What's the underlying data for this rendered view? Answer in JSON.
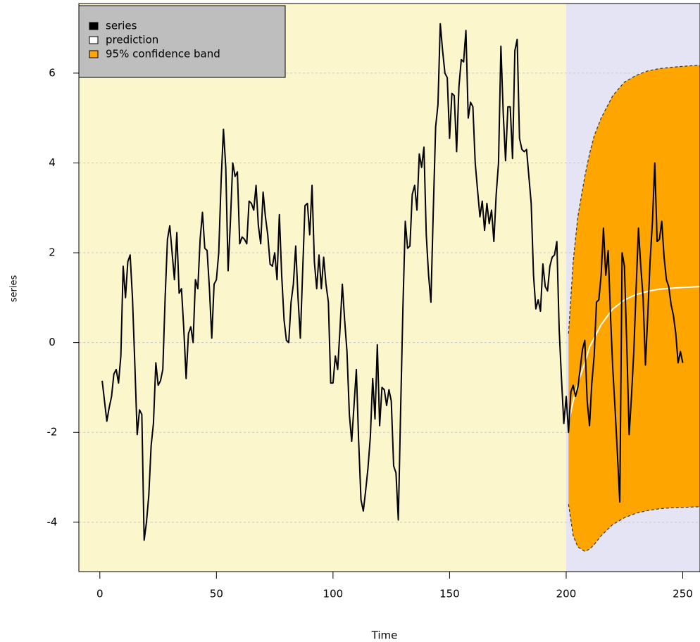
{
  "chart_data": {
    "type": "line",
    "x_label": "Time",
    "y_label": "series",
    "xlim": [
      -9,
      257.4
    ],
    "ylim": [
      -5.1,
      7.55
    ],
    "xticks": [
      0,
      50,
      100,
      150,
      200,
      250
    ],
    "yticks": [
      -4,
      -2,
      0,
      2,
      4,
      6
    ],
    "grid": true,
    "legend": "top-left",
    "forecast_start": 200,
    "background_colors": [
      "#fcf6cc",
      "#e4e4f5"
    ],
    "series": [
      {
        "name": "series",
        "color": "#000000",
        "x": [
          1,
          2,
          3,
          4,
          5,
          6,
          7,
          8,
          9,
          10,
          11,
          12,
          13,
          14,
          15,
          16,
          17,
          18,
          19,
          20,
          21,
          22,
          23,
          24,
          25,
          26,
          27,
          28,
          29,
          30,
          31,
          32,
          33,
          34,
          35,
          36,
          37,
          38,
          39,
          40,
          41,
          42,
          43,
          44,
          45,
          46,
          47,
          48,
          49,
          50,
          51,
          52,
          53,
          54,
          55,
          56,
          57,
          58,
          59,
          60,
          61,
          62,
          63,
          64,
          65,
          66,
          67,
          68,
          69,
          70,
          71,
          72,
          73,
          74,
          75,
          76,
          77,
          78,
          79,
          80,
          81,
          82,
          83,
          84,
          85,
          86,
          87,
          88,
          89,
          90,
          91,
          92,
          93,
          94,
          95,
          96,
          97,
          98,
          99,
          100,
          101,
          102,
          103,
          104,
          105,
          106,
          107,
          108,
          109,
          110,
          111,
          112,
          113,
          114,
          115,
          116,
          117,
          118,
          119,
          120,
          121,
          122,
          123,
          124,
          125,
          126,
          127,
          128,
          129,
          130,
          131,
          132,
          133,
          134,
          135,
          136,
          137,
          138,
          139,
          140,
          141,
          142,
          143,
          144,
          145,
          146,
          147,
          148,
          149,
          150,
          151,
          152,
          153,
          154,
          155,
          156,
          157,
          158,
          159,
          160,
          161,
          162,
          163,
          164,
          165,
          166,
          167,
          168,
          169,
          170,
          171,
          172,
          173,
          174,
          175,
          176,
          177,
          178,
          179,
          180,
          181,
          182,
          183,
          184,
          185,
          186,
          187,
          188,
          189,
          190,
          191,
          192,
          193,
          194,
          195,
          196,
          197,
          198,
          199,
          200,
          201,
          202,
          203,
          204,
          205,
          206,
          207,
          208,
          209,
          210,
          211,
          212,
          213,
          214,
          215,
          216,
          217,
          218,
          219,
          220,
          221,
          222,
          223,
          224,
          225,
          226,
          227,
          228,
          229,
          230,
          231,
          232,
          233,
          234,
          235,
          236,
          237,
          238,
          239,
          240,
          241,
          242,
          243,
          244,
          245,
          246,
          247,
          248,
          249,
          250
        ],
        "values": [
          -0.85,
          -1.3,
          -1.75,
          -1.45,
          -1.2,
          -0.7,
          -0.6,
          -0.9,
          -0.3,
          1.7,
          1.0,
          1.8,
          1.95,
          1.0,
          -0.5,
          -2.05,
          -1.5,
          -1.6,
          -4.4,
          -4.0,
          -3.4,
          -2.3,
          -1.8,
          -0.45,
          -0.95,
          -0.85,
          -0.6,
          1.0,
          2.3,
          2.6,
          2.0,
          1.4,
          2.45,
          1.1,
          1.2,
          0.3,
          -0.8,
          0.2,
          0.35,
          0.0,
          1.4,
          1.2,
          2.3,
          2.9,
          2.1,
          2.05,
          1.2,
          0.1,
          1.3,
          1.4,
          2.0,
          3.6,
          4.75,
          3.9,
          1.6,
          2.7,
          4.0,
          3.7,
          3.8,
          2.2,
          2.35,
          2.3,
          2.2,
          3.15,
          3.1,
          2.95,
          3.5,
          2.6,
          2.2,
          3.35,
          2.8,
          2.4,
          1.75,
          1.7,
          2.0,
          1.4,
          2.85,
          1.5,
          0.5,
          0.05,
          0.0,
          0.9,
          1.3,
          2.15,
          1.0,
          0.1,
          1.6,
          3.05,
          3.1,
          2.4,
          3.5,
          1.8,
          1.2,
          1.95,
          1.2,
          1.9,
          1.3,
          0.9,
          -0.9,
          -0.9,
          -0.3,
          -0.6,
          0.3,
          1.3,
          0.5,
          -0.2,
          -1.6,
          -2.2,
          -1.4,
          -0.6,
          -2.2,
          -3.5,
          -3.75,
          -3.3,
          -2.8,
          -2.1,
          -0.8,
          -1.7,
          -0.05,
          -1.85,
          -1.0,
          -1.05,
          -1.4,
          -1.05,
          -1.3,
          -2.75,
          -2.9,
          -3.95,
          -1.5,
          0.8,
          2.7,
          2.1,
          2.15,
          3.3,
          3.5,
          2.95,
          4.2,
          3.9,
          4.35,
          2.4,
          1.5,
          0.9,
          2.9,
          4.8,
          5.3,
          7.1,
          6.5,
          6.0,
          5.9,
          4.55,
          5.55,
          5.5,
          4.25,
          5.7,
          6.3,
          6.25,
          6.95,
          5.0,
          5.35,
          5.25,
          4.0,
          3.4,
          2.8,
          3.15,
          2.5,
          3.1,
          2.65,
          2.95,
          2.25,
          3.3,
          4.0,
          6.6,
          5.1,
          4.05,
          5.25,
          5.25,
          4.1,
          6.5,
          6.75,
          4.55,
          4.3,
          4.25,
          4.3,
          3.7,
          3.1,
          1.5,
          0.75,
          0.95,
          0.7,
          1.75,
          1.25,
          1.15,
          1.7,
          1.9,
          1.95,
          2.25,
          0.3,
          -0.8,
          -1.8,
          -1.2,
          -2.0,
          -1.1,
          -0.95,
          -1.2,
          -1.0,
          -0.6,
          -0.15,
          0.05,
          -1.3,
          -1.85,
          -0.9,
          -0.3,
          0.9,
          0.95,
          1.5,
          2.55,
          1.5,
          2.05,
          0.6,
          -0.6,
          -1.5,
          -2.5,
          -3.55,
          2.0,
          1.7,
          -0.05,
          -2.05,
          -1.2,
          -0.2,
          1.2,
          2.55,
          1.7,
          1.0,
          -0.5,
          0.6,
          1.8,
          2.7,
          4.0,
          2.25,
          2.3,
          2.7,
          1.9,
          1.4,
          1.25,
          0.85,
          0.6,
          0.2,
          -0.45,
          -0.2,
          -0.45
        ]
      },
      {
        "name": "prediction",
        "color": "#ffffff",
        "x": [
          201,
          203,
          205,
          208,
          210,
          212,
          215,
          220,
          225,
          230,
          235,
          240,
          245,
          250,
          255,
          260
        ],
        "values": [
          -1.8,
          -1.3,
          -0.9,
          -0.45,
          -0.1,
          0.1,
          0.4,
          0.75,
          0.95,
          1.07,
          1.14,
          1.19,
          1.21,
          1.23,
          1.24,
          1.25
        ]
      }
    ],
    "band": {
      "name": "95% confidence band",
      "color": "#ffa500",
      "x": [
        201,
        203,
        205,
        208,
        210,
        212,
        215,
        220,
        225,
        230,
        235,
        240,
        245,
        250,
        255,
        260
      ],
      "upper": [
        0.2,
        1.8,
        2.8,
        3.7,
        4.2,
        4.6,
        5.0,
        5.5,
        5.8,
        5.95,
        6.05,
        6.1,
        6.13,
        6.15,
        6.17,
        6.18
      ],
      "lower": [
        -3.6,
        -4.3,
        -4.55,
        -4.65,
        -4.6,
        -4.5,
        -4.3,
        -4.05,
        -3.9,
        -3.8,
        -3.74,
        -3.7,
        -3.68,
        -3.67,
        -3.66,
        -3.65
      ]
    }
  }
}
